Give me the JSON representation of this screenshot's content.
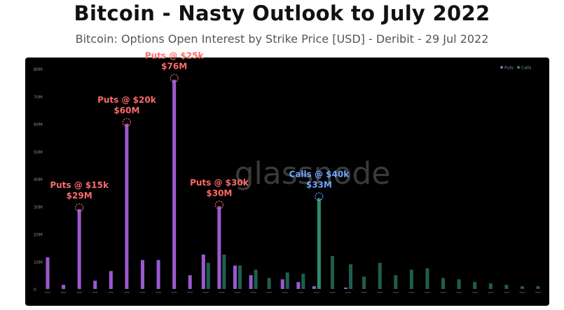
{
  "header": {
    "title": "Bitcoin - Nasty Outlook to July 2022",
    "subtitle": "Bitcoin: Options Open Interest by Strike Price [USD] - Deribit - 29 Jul 2022"
  },
  "watermark": "glassnode",
  "colors": {
    "background": "#000000",
    "puts": "#9b59d0",
    "calls": "#1f5e4f",
    "callsHighlight": "#2f8a6e",
    "axisText": "#8a8a8a",
    "putsAnnotation": "#ff6b6b",
    "callsAnnotation": "#6fa8ff",
    "watermark": "#3a3a3a"
  },
  "chart_data": {
    "type": "bar",
    "ylim": [
      0,
      80
    ],
    "yticks": [
      "0",
      "10M",
      "20M",
      "30M",
      "40M",
      "50M",
      "60M",
      "70M",
      "80M"
    ],
    "grid": false,
    "legend": {
      "placement": "top-right",
      "entries": [
        "Puts",
        "Calls"
      ]
    },
    "series": [
      {
        "name": "Puts",
        "values": [
          11.5,
          1.5,
          29,
          3,
          6.5,
          60,
          10.5,
          10.5,
          76,
          5,
          12.5,
          30,
          8.5,
          5,
          0,
          3.5,
          2.5,
          1,
          0,
          0.5,
          0,
          0,
          0,
          0,
          0,
          0,
          0,
          0,
          0,
          0,
          0,
          0
        ]
      },
      {
        "name": "Calls",
        "values": [
          0,
          0,
          0,
          0,
          0,
          0,
          0,
          0,
          0,
          0,
          9.5,
          12.5,
          8.5,
          7,
          4,
          6,
          5.5,
          33,
          12,
          9,
          4.5,
          9.5,
          5,
          7,
          7.5,
          4,
          3.5,
          2.5,
          2,
          1.5,
          1,
          1
        ]
      }
    ],
    "annotations": [
      {
        "label": "Puts @ $15k",
        "value": "$29M",
        "series": "Puts",
        "index": 2
      },
      {
        "label": "Puts @ $20k",
        "value": "$60M",
        "series": "Puts",
        "index": 5
      },
      {
        "label": "Puts @ $25k",
        "value": "$76M",
        "series": "Puts",
        "index": 8
      },
      {
        "label": "Puts @ $30k",
        "value": "$30M",
        "series": "Puts",
        "index": 11
      },
      {
        "label": "Calls @ $40k",
        "value": "$33M",
        "series": "Calls",
        "index": 17
      }
    ]
  }
}
